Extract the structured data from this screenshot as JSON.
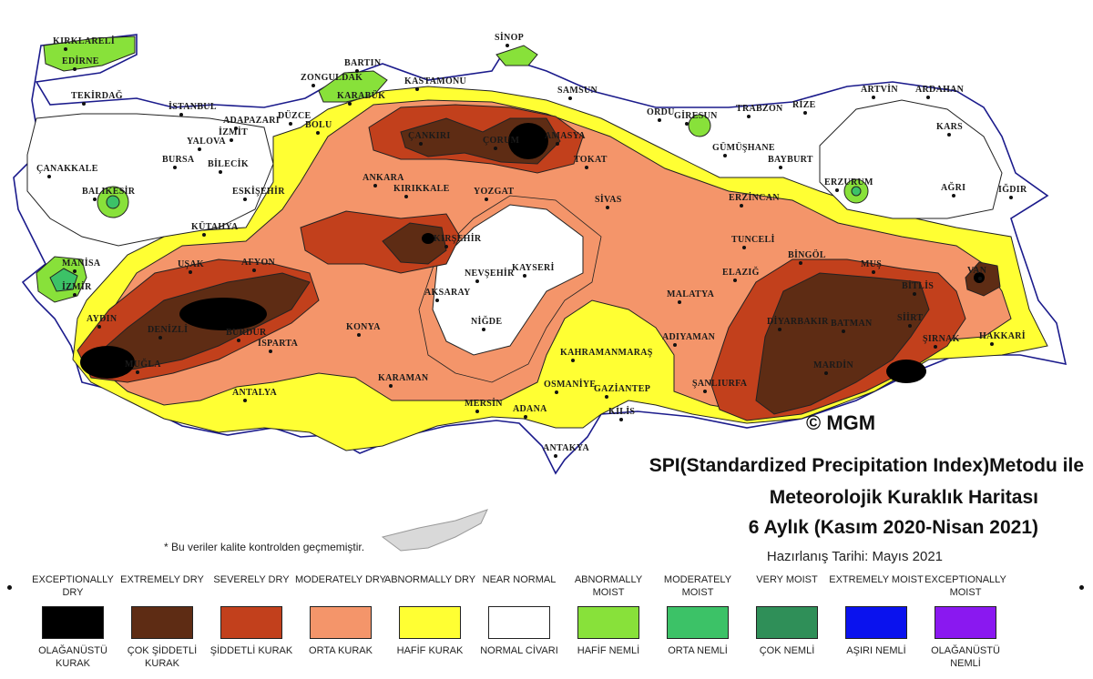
{
  "title": {
    "line1": "SPI(Standardized Precipitation Index)Metodu ile",
    "line2": "Meteorolojik Kuraklık Haritası",
    "line3": "6 Aylık (Kasım 2020-Nisan 2021)"
  },
  "prepared_date": "Hazırlanış Tarihi: Mayıs 2021",
  "footnote": "* Bu veriler kalite kontrolden geçmemiştir.",
  "copyright": "© MGM",
  "cities": [
    {
      "name": "KIRKLARELİ"
    },
    {
      "name": "EDİRNE"
    },
    {
      "name": "TEKİRDAĞ"
    },
    {
      "name": "İSTANBUL"
    },
    {
      "name": "ÇANAKKALE"
    },
    {
      "name": "BALIKESİR"
    },
    {
      "name": "BURSA"
    },
    {
      "name": "YALOVA"
    },
    {
      "name": "İZMİT"
    },
    {
      "name": "ADAPAZARI"
    },
    {
      "name": "DÜZCE"
    },
    {
      "name": "BOLU"
    },
    {
      "name": "BİLECİK"
    },
    {
      "name": "ESKİŞEHİR"
    },
    {
      "name": "KÜTAHYA"
    },
    {
      "name": "MANİSA"
    },
    {
      "name": "İZMİR"
    },
    {
      "name": "UŞAK"
    },
    {
      "name": "AFYON"
    },
    {
      "name": "AYDIN"
    },
    {
      "name": "DENİZLİ"
    },
    {
      "name": "BURDUR"
    },
    {
      "name": "ISPARTA"
    },
    {
      "name": "MUĞLA"
    },
    {
      "name": "ANTALYA"
    },
    {
      "name": "ZONGULDAK"
    },
    {
      "name": "BARTIN"
    },
    {
      "name": "KARABÜK"
    },
    {
      "name": "KASTAMONU"
    },
    {
      "name": "SİNOP"
    },
    {
      "name": "SAMSUN"
    },
    {
      "name": "ÇANKIRI"
    },
    {
      "name": "ÇORUM"
    },
    {
      "name": "AMASYA"
    },
    {
      "name": "TOKAT"
    },
    {
      "name": "ANKARA"
    },
    {
      "name": "KIRIKKALE"
    },
    {
      "name": "YOZGAT"
    },
    {
      "name": "KIRŞEHİR"
    },
    {
      "name": "NEVŞEHİR"
    },
    {
      "name": "KAYSERİ"
    },
    {
      "name": "AKSARAY"
    },
    {
      "name": "NİĞDE"
    },
    {
      "name": "KONYA"
    },
    {
      "name": "KARAMAN"
    },
    {
      "name": "MERSİN"
    },
    {
      "name": "ADANA"
    },
    {
      "name": "OSMANİYE"
    },
    {
      "name": "GAZİANTEP"
    },
    {
      "name": "KİLİS"
    },
    {
      "name": "ANTAKYA"
    },
    {
      "name": "KAHRAMANMARAŞ"
    },
    {
      "name": "ADIYAMAN"
    },
    {
      "name": "ŞANLIURFA"
    },
    {
      "name": "MALATYA"
    },
    {
      "name": "ELAZIĞ"
    },
    {
      "name": "TUNCELİ"
    },
    {
      "name": "BİNGÖL"
    },
    {
      "name": "DİYARBAKIR"
    },
    {
      "name": "BATMAN"
    },
    {
      "name": "MARDİN"
    },
    {
      "name": "SİİRT"
    },
    {
      "name": "ŞIRNAK"
    },
    {
      "name": "BİTLİS"
    },
    {
      "name": "MUŞ"
    },
    {
      "name": "VAN"
    },
    {
      "name": "HAKKARİ"
    },
    {
      "name": "AĞRI"
    },
    {
      "name": "IĞDIR"
    },
    {
      "name": "KARS"
    },
    {
      "name": "ARDAHAN"
    },
    {
      "name": "ARTVİN"
    },
    {
      "name": "RİZE"
    },
    {
      "name": "TRABZON"
    },
    {
      "name": "GİRESUN"
    },
    {
      "name": "ORDU"
    },
    {
      "name": "GÜMÜŞHANE"
    },
    {
      "name": "BAYBURT"
    },
    {
      "name": "ERZURUM"
    },
    {
      "name": "ERZİNCAN"
    },
    {
      "name": "SİVAS"
    }
  ],
  "legend": [
    {
      "en": "EXCEPTIONALLY DRY",
      "tr": "OLAĞANÜSTÜ KURAK",
      "color": "#000000"
    },
    {
      "en": "EXTREMELY DRY",
      "tr": "ÇOK ŞİDDETLİ KURAK",
      "color": "#5e2c14"
    },
    {
      "en": "SEVERELY DRY",
      "tr": "ŞİDDETLİ KURAK",
      "color": "#c2401c"
    },
    {
      "en": "MODERATELY DRY",
      "tr": "ORTA KURAK",
      "color": "#f4956a"
    },
    {
      "en": "ABNORMALLY DRY",
      "tr": "HAFİF KURAK",
      "color": "#ffff33"
    },
    {
      "en": "NEAR NORMAL",
      "tr": "NORMAL CİVARI",
      "color": "#ffffff"
    },
    {
      "en": "ABNORMALLY MOIST",
      "tr": "HAFİF NEMLİ",
      "color": "#88e13a"
    },
    {
      "en": "MODERATELY MOIST",
      "tr": "ORTA NEMLİ",
      "color": "#3cc267"
    },
    {
      "en": "VERY MOIST",
      "tr": "ÇOK NEMLİ",
      "color": "#2f8f58"
    },
    {
      "en": "EXTREMELY MOIST",
      "tr": "AŞIRI NEMLİ",
      "color": "#0a12ee"
    },
    {
      "en": "EXCEPTIONALLY MOIST",
      "tr": "OLAĞANÜSTÜ NEMLİ",
      "color": "#8a18f0"
    }
  ]
}
